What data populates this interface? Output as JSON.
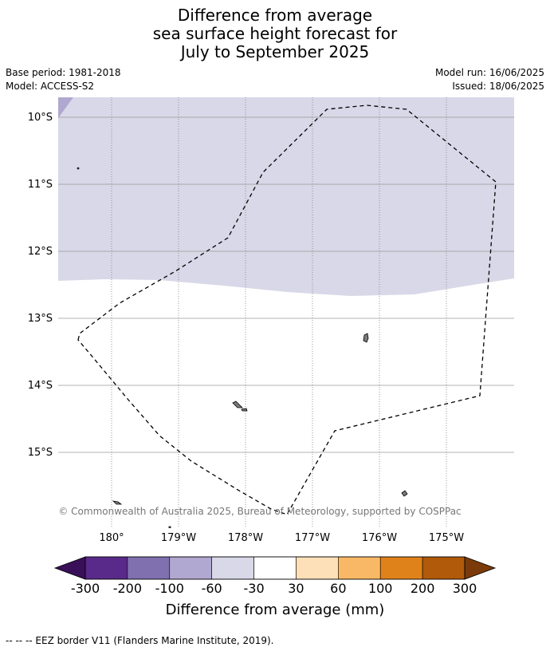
{
  "title": {
    "line1": "Difference from average",
    "line2": "sea surface height forecast for",
    "line3": "July to September 2025"
  },
  "meta": {
    "base_period": "Base period: 1981-2018",
    "model": "Model: ACCESS-S2",
    "model_run": "Model run: 16/06/2025",
    "issued": "Issued: 18/06/2025"
  },
  "map": {
    "lat_labels": [
      "10°S",
      "11°S",
      "12°S",
      "13°S",
      "14°S",
      "15°S"
    ],
    "lon_labels": [
      "180°",
      "179°W",
      "178°W",
      "177°W",
      "176°W",
      "175°W"
    ],
    "credit": "© Commonwealth of Australia 2025, Bureau of Meteorology, supported by COSPPac",
    "region_colors": {
      "north_band": "#d8d8e8",
      "corner_patch": "#b0a8d0",
      "south_band": "#ffffff"
    },
    "border_style": "dashed"
  },
  "colorbar": {
    "tick_labels": [
      "-300",
      "-200",
      "-100",
      "-60",
      "-30",
      "30",
      "60",
      "100",
      "200",
      "300"
    ],
    "colors": [
      "#5a2a8a",
      "#8070b0",
      "#b0a8d0",
      "#d8d8e8",
      "#ffffff",
      "#fde0b8",
      "#f8b865",
      "#e0821a",
      "#b05a0a"
    ],
    "under_color": "#3a0f5a",
    "over_color": "#7a3a0a",
    "label": "Difference from average (mm)"
  },
  "footnote": "--  --  -- EEZ border V11 (Flanders Marine Institute, 2019)."
}
